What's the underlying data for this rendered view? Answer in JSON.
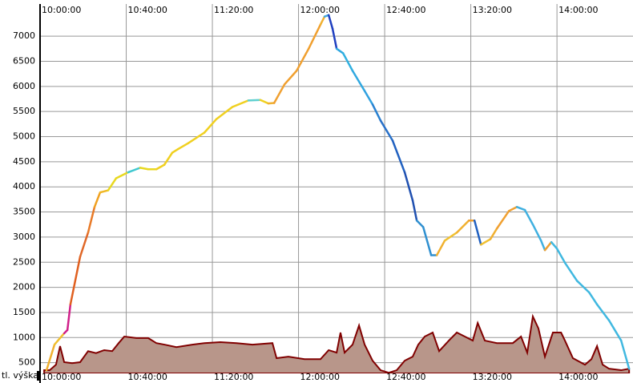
{
  "chart_data": {
    "type": "line",
    "xlim": [
      600,
      875.3
    ],
    "xticks": [
      {
        "value": 600,
        "label": "10:00:00"
      },
      {
        "value": 640,
        "label": "10:40:00"
      },
      {
        "value": 680,
        "label": "11:20:00"
      },
      {
        "value": 720,
        "label": "12:00:00"
      },
      {
        "value": 760,
        "label": "12:40:00"
      },
      {
        "value": 800,
        "label": "13:20:00"
      },
      {
        "value": 840,
        "label": "14:00:00"
      }
    ],
    "ylim": [
      287,
      7640
    ],
    "yticks": [
      500,
      1000,
      1500,
      2000,
      2500,
      3000,
      3500,
      4000,
      4500,
      5000,
      5500,
      6000,
      6500,
      7000
    ],
    "grid": true,
    "series": [
      {
        "x": [
          603.0,
          606.7,
          611.2,
          612.7,
          614.1,
          618.6,
          622.3,
          625.3,
          627.9,
          631.6,
          635.3,
          640.9,
          646.5,
          650.2,
          654.0,
          657.7,
          661.4,
          664.0,
          668.8,
          676.3,
          681.9,
          689.3,
          696.7,
          702.3,
          706.0,
          708.7,
          713.5,
          719.1,
          724.7,
          730.2,
          732.1,
          734.0,
          735.8,
          737.7,
          740.7,
          745.1,
          750.7,
          754.4,
          758.1,
          763.7,
          769.3,
          773.0,
          774.9,
          777.9,
          781.6,
          784.2,
          787.9,
          793.5,
          799.1,
          801.7,
          804.7,
          809.1,
          812.1,
          817.7,
          821.4,
          825.1,
          828.8,
          832.6,
          834.4,
          837.4,
          840.0,
          843.7,
          849.3,
          854.9,
          858.6,
          864.2,
          869.8,
          873.5
        ],
        "values": [
          350,
          860,
          1085,
          1150,
          1660,
          2610,
          3090,
          3600,
          3890,
          3930,
          4170,
          4290,
          4380,
          4350,
          4350,
          4440,
          4680,
          4750,
          4870,
          5080,
          5350,
          5590,
          5720,
          5730,
          5660,
          5670,
          6040,
          6310,
          6750,
          7230,
          7390,
          7420,
          7150,
          6750,
          6660,
          6310,
          5910,
          5640,
          5320,
          4920,
          4290,
          3730,
          3330,
          3200,
          2640,
          2640,
          2930,
          3090,
          3330,
          3330,
          2850,
          2960,
          3170,
          3520,
          3600,
          3540,
          3250,
          2930,
          2740,
          2900,
          2770,
          2490,
          2130,
          1900,
          1660,
          1340,
          940,
          380
        ],
        "colors": [
          "#f0b030",
          "#f0c030",
          "#d0208a",
          "#d0208a",
          "#e06020",
          "#e06828",
          "#e87a28",
          "#f0a020",
          "#f0b828",
          "#e8d820",
          "#e8d820",
          "#40c8d0",
          "#e8d820",
          "#e8d820",
          "#f0d020",
          "#f0d020",
          "#f0d020",
          "#f0d020",
          "#f0d020",
          "#f0d020",
          "#f0d020",
          "#f0d020",
          "#60d0d0",
          "#f0d020",
          "#f0b030",
          "#f0a030",
          "#f0a030",
          "#f0a030",
          "#f0a030",
          "#f0b030",
          "#40a8e0",
          "#2040c0",
          "#2040c0",
          "#30a8e0",
          "#30b0e0",
          "#30a8e0",
          "#30a0e0",
          "#2880d0",
          "#2870c8",
          "#2060c0",
          "#2050b0",
          "#2050b0",
          "#3090d0",
          "#3090d0",
          "#3090d0",
          "#f0b030",
          "#f0c030",
          "#f0b030",
          "#f0a030",
          "#2060c0",
          "#f0c030",
          "#f0b030",
          "#f0a030",
          "#f0a030",
          "#40b0e0",
          "#40b0e0",
          "#40b0e0",
          "#40b0e0",
          "#f0a030",
          "#40b8e0",
          "#40b8e0",
          "#40b8e0",
          "#40b8e0",
          "#40b8e0",
          "#40b8e0",
          "#40b8e0",
          "#40b8e0",
          "#40b8e0"
        ]
      },
      {
        "name": "tl. výška",
        "fill": "#b8968a",
        "color": "#800000",
        "x": [
          601.9,
          604.5,
          607.4,
          609.3,
          611.2,
          614.9,
          618.6,
          622.3,
          626.0,
          629.8,
          633.5,
          636.5,
          639.1,
          644.7,
          650.2,
          654.0,
          657.7,
          663.3,
          670.7,
          676.3,
          683.7,
          691.2,
          698.6,
          707.9,
          709.8,
          715.3,
          722.8,
          730.2,
          734.0,
          737.7,
          739.5,
          741.4,
          745.1,
          748.1,
          750.7,
          754.4,
          758.1,
          761.9,
          765.6,
          769.3,
          773.0,
          775.6,
          778.6,
          782.3,
          785.3,
          789.8,
          793.5,
          797.2,
          800.9,
          803.2,
          806.5,
          812.1,
          819.5,
          823.3,
          826.2,
          828.8,
          831.4,
          834.4,
          838.1,
          841.9,
          843.7,
          847.4,
          853.0,
          856.0,
          858.6,
          861.2,
          864.2,
          869.8,
          873.5
        ],
        "values": [
          350,
          350,
          460,
          830,
          510,
          490,
          510,
          730,
          690,
          750,
          730,
          890,
          1020,
          990,
          990,
          890,
          860,
          810,
          860,
          890,
          910,
          890,
          860,
          890,
          590,
          620,
          570,
          570,
          750,
          700,
          1100,
          700,
          860,
          1240,
          860,
          540,
          350,
          300,
          350,
          540,
          620,
          860,
          1020,
          1100,
          730,
          940,
          1100,
          1020,
          940,
          1290,
          940,
          890,
          890,
          1020,
          700,
          1420,
          1180,
          620,
          1100,
          1100,
          940,
          590,
          460,
          570,
          830,
          460,
          380,
          350,
          380
        ]
      }
    ]
  }
}
